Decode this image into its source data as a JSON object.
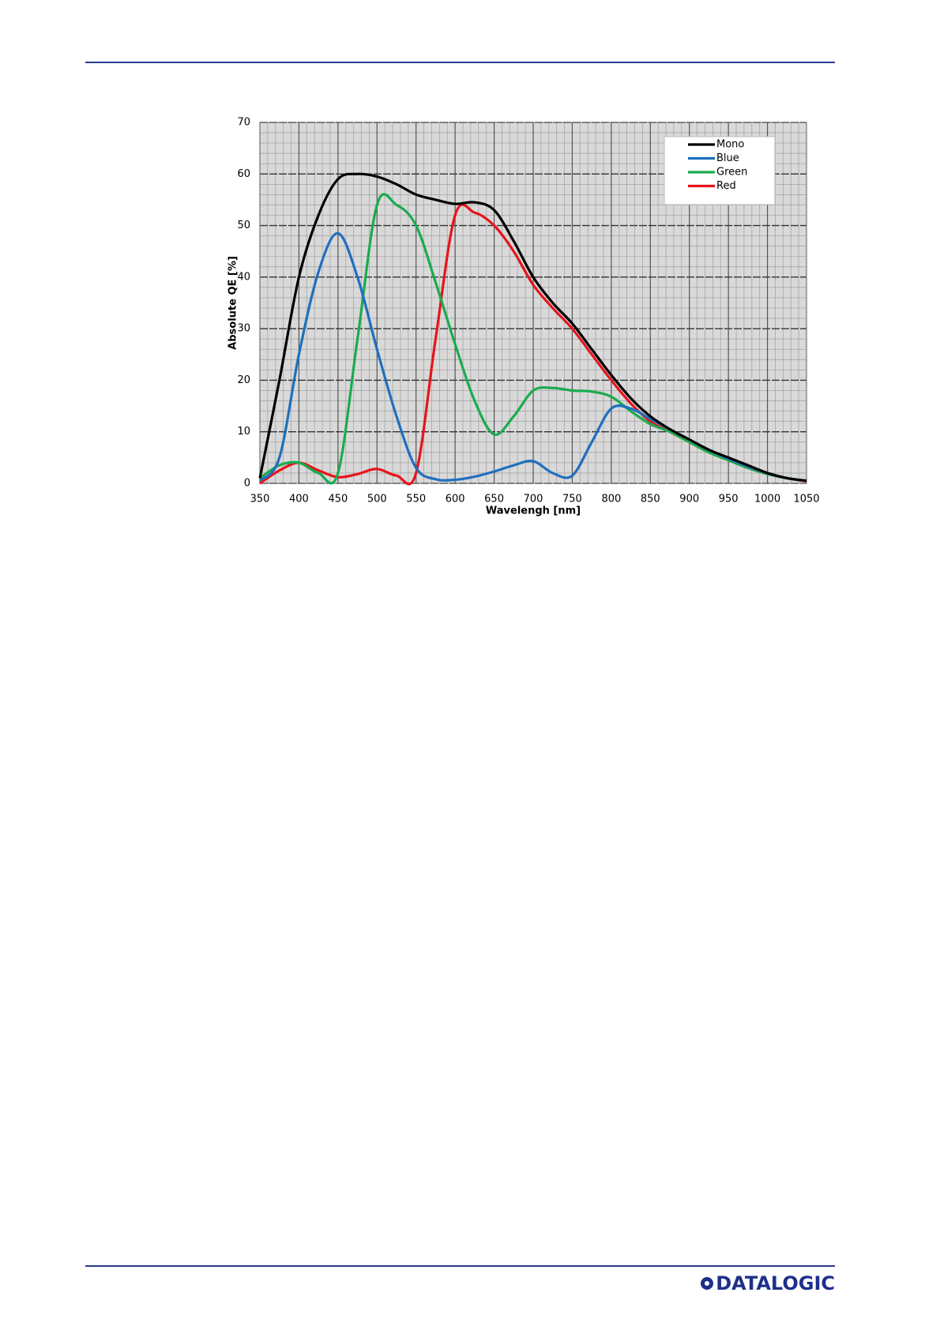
{
  "chart_data": {
    "type": "line",
    "x_label": "Wavelengh [nm]",
    "y_label": "Absolute QE [%]",
    "x": [
      350,
      375,
      400,
      425,
      450,
      475,
      500,
      525,
      550,
      575,
      600,
      625,
      650,
      675,
      700,
      725,
      750,
      775,
      800,
      825,
      850,
      875,
      900,
      925,
      950,
      975,
      1000,
      1025,
      1050
    ],
    "series": [
      {
        "name": "Mono",
        "color": "#000000",
        "values": [
          1,
          20,
          40,
          52,
          59,
          60,
          59.5,
          58,
          56,
          55,
          54.2,
          54.5,
          53,
          47,
          40,
          35,
          31,
          26,
          21,
          16.5,
          13,
          10.5,
          8.5,
          6.5,
          5,
          3.5,
          2,
          1,
          0.5
        ]
      },
      {
        "name": "Blue",
        "color": "#1f6fbf",
        "values": [
          0.5,
          5,
          25,
          41,
          48.5,
          40,
          26,
          13,
          3,
          0.8,
          0.7,
          1.3,
          2.3,
          3.5,
          4.3,
          2,
          1.5,
          8,
          14.5,
          14.5,
          12.5,
          10.5,
          8.5,
          6.5,
          4.8,
          3.3,
          2,
          1,
          0.5
        ]
      },
      {
        "name": "Green",
        "color": "#1aab4f",
        "values": [
          1,
          3.5,
          4,
          2,
          2,
          28,
          54,
          54,
          50,
          39,
          27,
          16,
          9.5,
          13,
          18,
          18.5,
          18,
          17.8,
          16.8,
          14,
          11.5,
          10,
          8,
          6,
          4.5,
          3,
          1.8,
          1,
          0.5
        ]
      },
      {
        "name": "Red",
        "color": "#e8141b",
        "values": [
          0,
          2.5,
          4,
          2.5,
          1.2,
          1.8,
          2.8,
          1.5,
          2,
          28,
          52,
          52.5,
          50,
          45,
          38.5,
          34,
          30,
          25,
          20,
          15.5,
          12,
          10,
          8,
          6,
          4.5,
          3,
          1.8,
          1,
          0.4
        ]
      }
    ],
    "xlim": [
      350,
      1050
    ],
    "xticks": [
      350,
      400,
      450,
      500,
      550,
      600,
      650,
      700,
      750,
      800,
      850,
      900,
      950,
      1000,
      1050
    ],
    "ylim": [
      0,
      70
    ],
    "yticks": [
      0,
      10,
      20,
      30,
      40,
      50,
      60,
      70
    ],
    "grid": true,
    "legend": "upper right"
  },
  "logo": "DATALOGIC"
}
